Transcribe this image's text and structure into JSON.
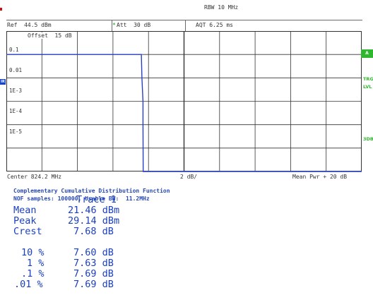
{
  "header": {
    "rbw": "RBW 10 MHz",
    "ref": "Ref  44.5 dBm",
    "att_mark": "*",
    "att": "Att  30 dB",
    "aqt": "AQT 6.25 ms",
    "offset": "Offset  15 dB"
  },
  "y_labels": [
    "0.1",
    "0.01",
    "1E-3",
    "1E-4",
    "1E-5"
  ],
  "side": {
    "a_box": "A",
    "trg": "TRG",
    "lvl": "LVL",
    "db3": "3DB",
    "left_tag": "IR"
  },
  "footer": {
    "center": "Center 824.2 MHz",
    "div": "2 dB/",
    "right": "Mean Pwr + 20 dB"
  },
  "info": {
    "line1": "Complementary Cumulative Distribution Function",
    "line2": "NOF samples: 100000, Usable BW:  11.2MHz"
  },
  "results": {
    "trace_title": "Trace 1",
    "rows": [
      {
        "label": "Mean",
        "value": "21.46 dBm"
      },
      {
        "label": "Peak",
        "value": "29.14 dBm"
      },
      {
        "label": "Crest",
        "value": "7.68 dB"
      }
    ],
    "percentiles": [
      {
        "pct": "10 %",
        "value": "7.60 dB"
      },
      {
        "pct": "1 %",
        "value": "7.63 dB"
      },
      {
        "pct": ".1 %",
        "value": "7.69 dB"
      },
      {
        "pct": ".01 %",
        "value": "7.69 dB"
      }
    ]
  },
  "colors": {
    "trace": "#2a3fc8",
    "text_blue": "#1a3fc0",
    "green_tag": "#2fb82f",
    "grid": "#333333"
  },
  "chart_data": {
    "type": "line",
    "title": "Complementary Cumulative Distribution Function",
    "xlabel": "",
    "ylabel": "",
    "x_unit": "dB above mean power",
    "x_range": [
      0,
      20
    ],
    "y_scale": "log",
    "y_range": [
      1e-06,
      1
    ],
    "y_tick_labels": [
      "0.1",
      "0.01",
      "1E-3",
      "1E-4",
      "1E-5"
    ],
    "grid": true,
    "series": [
      {
        "name": "Trace 1",
        "points": [
          {
            "x": 0.0,
            "y": 0.1
          },
          {
            "x": 7.4,
            "y": 0.1
          },
          {
            "x": 7.6,
            "y": 0.1
          },
          {
            "x": 7.63,
            "y": 0.01
          },
          {
            "x": 7.69,
            "y": 0.001
          },
          {
            "x": 7.69,
            "y": 0.0001
          },
          {
            "x": 7.7,
            "y": 1e-06
          },
          {
            "x": 20.0,
            "y": 1e-06
          }
        ]
      }
    ]
  }
}
